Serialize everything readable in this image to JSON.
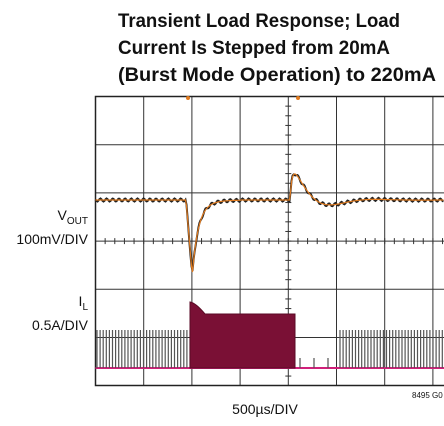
{
  "title": [
    "Transient Load Response; Load",
    "Current Is Stepped from 20mA",
    "(Burst Mode Operation) to 220mA"
  ],
  "channels": [
    {
      "label": "V",
      "subscript": "OUT",
      "scale": "100mV/DIV"
    },
    {
      "label": "I",
      "subscript": "L",
      "scale": "0.5A/DIV"
    }
  ],
  "x_label": "500µs/DIV",
  "figure_id": "8495 G0"
}
